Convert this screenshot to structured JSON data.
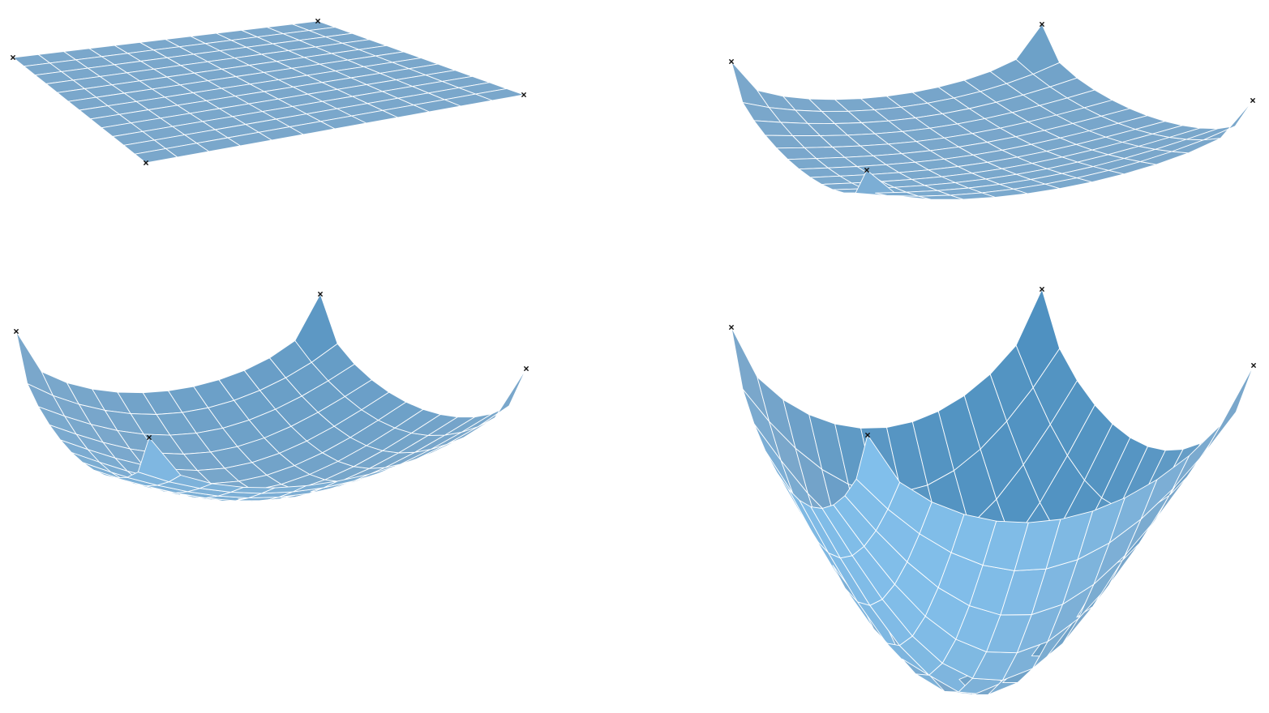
{
  "figure": {
    "description_type": "membrane-deformation-sequence",
    "grid": {
      "rows": 12,
      "cols": 12
    },
    "panels": [
      {
        "id": "panel-1",
        "deformation_level": 0.0
      },
      {
        "id": "panel-2",
        "deformation_level": 0.33
      },
      {
        "id": "panel-3",
        "deformation_level": 0.66
      },
      {
        "id": "panel-4",
        "deformation_level": 1.0
      }
    ],
    "pinned_corners": 4,
    "colors": {
      "surface_light": "#82c2ef",
      "surface_mid": "#7aa7cb",
      "surface_dark": "#4a8fc0",
      "grid_lines": "#ffffff",
      "pin_marker": "#111111"
    }
  }
}
